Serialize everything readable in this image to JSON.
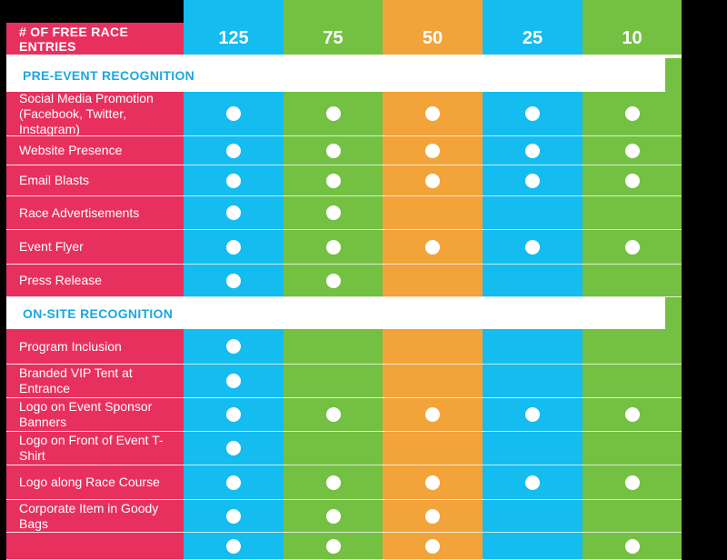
{
  "colors": {
    "label_bg": "#E8305F",
    "tier_colors": [
      "#14BCEF",
      "#74C043",
      "#F2A33A",
      "#14BCEF",
      "#74C043"
    ],
    "section_text": "#1BA7DE",
    "background": "#000000"
  },
  "header": {
    "label": "# OF FREE RACE ENTRIES",
    "tiers": [
      "125",
      "75",
      "50",
      "25",
      "10"
    ]
  },
  "sections": [
    {
      "title": "PRE-EVENT RECOGNITION",
      "rows": [
        {
          "label": "Social Media Promotion\n(Facebook, Twitter, Instagram)",
          "marks": [
            true,
            true,
            true,
            true,
            true
          ]
        },
        {
          "label": "Website Presence",
          "marks": [
            true,
            true,
            true,
            true,
            true
          ]
        },
        {
          "label": "Email Blasts",
          "marks": [
            true,
            true,
            true,
            true,
            true
          ]
        },
        {
          "label": "Race Advertisements",
          "marks": [
            true,
            true,
            false,
            false,
            false
          ]
        },
        {
          "label": "Event Flyer",
          "marks": [
            true,
            true,
            true,
            true,
            true
          ]
        },
        {
          "label": "Press Release",
          "marks": [
            true,
            true,
            false,
            false,
            false
          ]
        }
      ]
    },
    {
      "title": "ON-SITE RECOGNITION",
      "rows": [
        {
          "label": "Program Inclusion",
          "marks": [
            true,
            false,
            false,
            false,
            false
          ]
        },
        {
          "label": "Branded VIP Tent at Entrance",
          "marks": [
            true,
            false,
            false,
            false,
            false
          ]
        },
        {
          "label": "Logo on Event Sponsor Banners",
          "marks": [
            true,
            true,
            true,
            true,
            true
          ]
        },
        {
          "label": "Logo on Front of Event T-Shirt",
          "marks": [
            true,
            false,
            false,
            false,
            false
          ]
        },
        {
          "label": "Logo along Race Course",
          "marks": [
            true,
            true,
            true,
            true,
            true
          ]
        },
        {
          "label": "Corporate Item in Goody Bags",
          "marks": [
            true,
            true,
            true,
            false,
            false
          ]
        },
        {
          "label": "",
          "marks": [
            true,
            true,
            true,
            false,
            true
          ]
        }
      ]
    }
  ]
}
